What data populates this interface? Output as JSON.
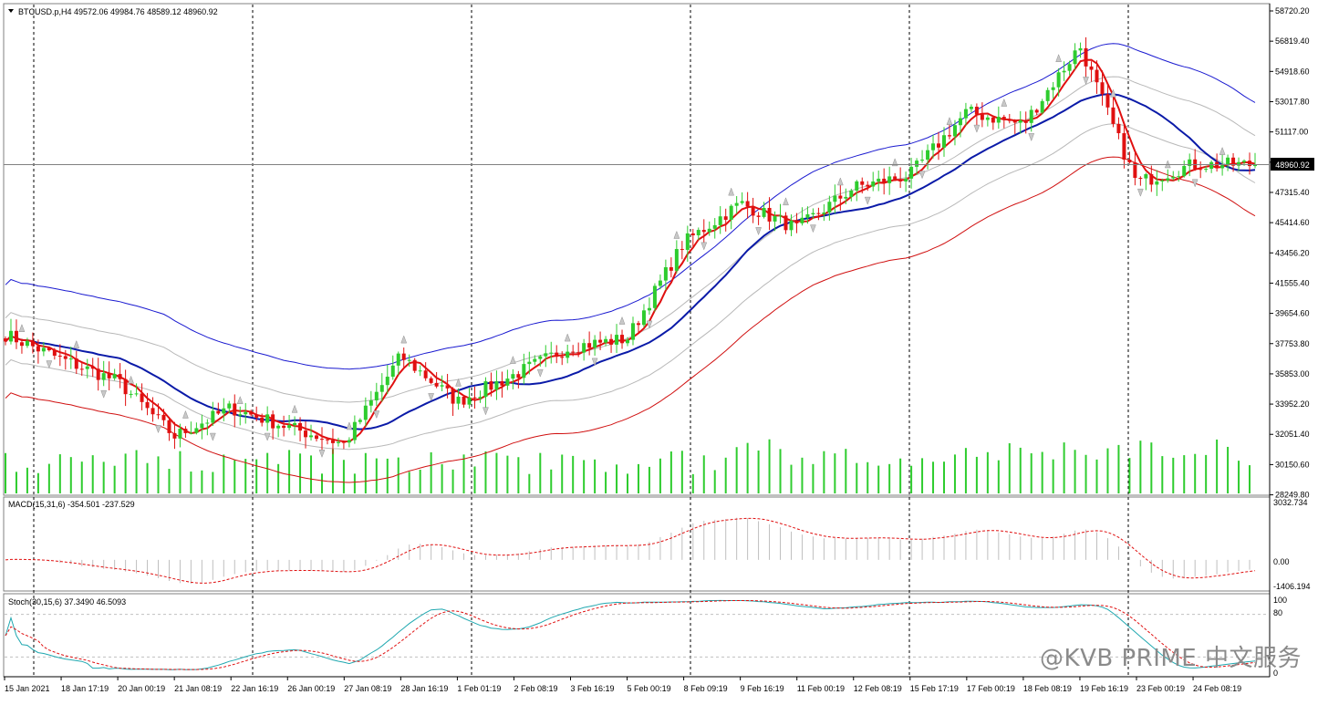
{
  "colors": {
    "bullish": "#2ecc2e",
    "bearish": "#e01010",
    "ma_fast": "#e01010",
    "ma_mid": "#0a1aa8",
    "band_upper": "#1a1ad0",
    "band_lower": "#d01010",
    "band_inner": "#b8b8b8",
    "volume": "#2ecc2e",
    "macd_hist": "#bfbfbf",
    "macd_signal": "#e01010",
    "stoch_main": "#20a8b0",
    "stoch_signal": "#e01010",
    "price_line": "#808080",
    "grid_vertical": "#000000"
  },
  "main": {
    "header": "BTCUSD.p,H4  49572.06 49984.76 48589.12 48960.92",
    "current_price_label": "48960.92",
    "y_tick_labels": [
      "58720.20",
      "56819.40",
      "54918.60",
      "53017.80",
      "51117.00",
      "49216.20",
      "47315.40",
      "45414.60",
      "43456.20",
      "41555.40",
      "39654.60",
      "37753.80",
      "35853.00",
      "33952.20",
      "32051.40",
      "30150.60",
      "28249.80"
    ]
  },
  "macd_panel": {
    "header": "MACD(15,31,6) -354.501 -237.529",
    "y_tick_labels": [
      "3032.734",
      "0.00",
      "-1406.194"
    ]
  },
  "stoch_panel": {
    "header": "Stoch(30,15,6) 37.3490 46.5093",
    "y_tick_labels": [
      "100",
      "80",
      "0"
    ]
  },
  "x_tick_labels": [
    "15 Jan 2021",
    "18 Jan 17:19",
    "20 Jan 00:19",
    "21 Jan 08:19",
    "22 Jan 16:19",
    "26 Jan 00:19",
    "27 Jan 08:19",
    "28 Jan 16:19",
    "1 Feb 01:19",
    "2 Feb 08:19",
    "3 Feb 16:19",
    "5 Feb 00:19",
    "8 Feb 09:19",
    "9 Feb 16:19",
    "11 Feb 00:19",
    "12 Feb 08:19",
    "15 Feb 17:19",
    "17 Feb 00:19",
    "18 Feb 08:19",
    "19 Feb 16:19",
    "23 Feb 00:19",
    "24 Feb 08:19"
  ],
  "watermark": "@KVB PRIME 中文服务",
  "chart_data": [
    {
      "type": "candlestick",
      "title": "BTCUSD.p,H4",
      "ohlc_last": {
        "open": 49572.06,
        "high": 49984.76,
        "low": 48589.12,
        "close": 48960.92
      },
      "ylim": [
        28249.8,
        58720.2
      ],
      "close_path": [
        {
          "x": "15 Jan 2021",
          "y": 38200
        },
        {
          "x": "18 Jan 17:19",
          "y": 36600
        },
        {
          "x": "20 Jan 00:19",
          "y": 35200
        },
        {
          "x": "21 Jan 08:19",
          "y": 31700
        },
        {
          "x": "22 Jan 16:19",
          "y": 33500
        },
        {
          "x": "26 Jan 00:19",
          "y": 32300
        },
        {
          "x": "27 Jan 08:19",
          "y": 31200
        },
        {
          "x": "28 Jan 16:19",
          "y": 36800
        },
        {
          "x": "1 Feb 01:19",
          "y": 33900
        },
        {
          "x": "2 Feb 08:19",
          "y": 35600
        },
        {
          "x": "3 Feb 16:19",
          "y": 37400
        },
        {
          "x": "5 Feb 00:19",
          "y": 37900
        },
        {
          "x": "8 Feb 09:19",
          "y": 44000
        },
        {
          "x": "9 Feb 16:19",
          "y": 46500
        },
        {
          "x": "11 Feb 00:19",
          "y": 44900
        },
        {
          "x": "12 Feb 08:19",
          "y": 47500
        },
        {
          "x": "15 Feb 17:19",
          "y": 48300
        },
        {
          "x": "17 Feb 00:19",
          "y": 52300
        },
        {
          "x": "18 Feb 08:19",
          "y": 51500
        },
        {
          "x": "19 Feb 16:19",
          "y": 56500
        },
        {
          "x": "23 Feb 00:19",
          "y": 47800
        },
        {
          "x": "24 Feb 08:19",
          "y": 48960.92
        }
      ]
    },
    {
      "type": "bar",
      "title": "MACD(15,31,6)",
      "macd_last": -354.501,
      "signal_last": -237.529,
      "ylim": [
        -1406.194,
        3032.734
      ]
    },
    {
      "type": "line",
      "title": "Stoch(30,15,6)",
      "main_last": 37.349,
      "signal_last": 46.5093,
      "ylim": [
        0,
        100
      ],
      "levels": [
        80,
        20
      ]
    }
  ]
}
